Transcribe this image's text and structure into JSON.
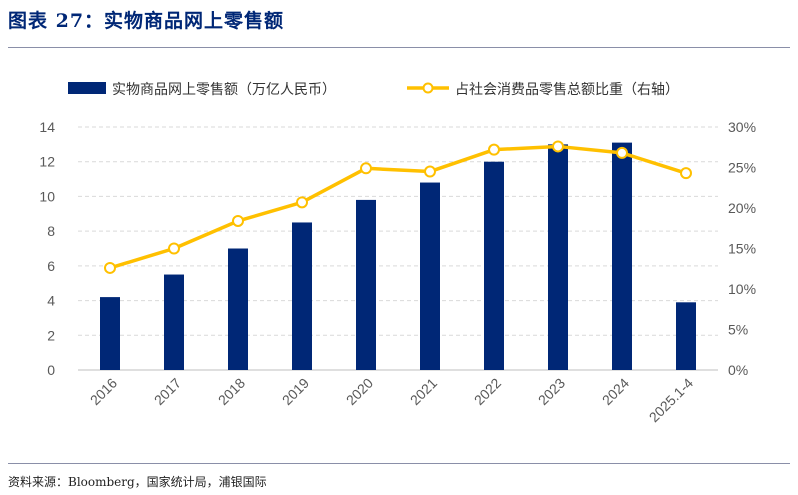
{
  "figure": {
    "title": "图表 27：实物商品网上零售额",
    "source": "资料来源：Bloomberg，国家统计局，浦银国际"
  },
  "colors": {
    "bar": "#002776",
    "line": "#FFC000",
    "grid": "#D9D9D9",
    "marker_fill": "#FFFFFF"
  },
  "chart_data": {
    "type": "bar+line",
    "title": "图表 27：实物商品网上零售额",
    "categories": [
      "2016",
      "2017",
      "2018",
      "2019",
      "2020",
      "2021",
      "2022",
      "2023",
      "2024",
      "2025.1-4"
    ],
    "series": [
      {
        "name": "实物商品网上零售额（万亿人民币）",
        "type": "bar",
        "axis": "left",
        "values": [
          4.2,
          5.5,
          7.0,
          8.5,
          9.8,
          10.8,
          12.0,
          13.0,
          13.1,
          3.9
        ]
      },
      {
        "name": "占社会消费品零售总额比重（右轴）",
        "type": "line",
        "axis": "right",
        "values": [
          12.6,
          15.0,
          18.4,
          20.7,
          24.9,
          24.5,
          27.2,
          27.6,
          26.8,
          24.3
        ]
      }
    ],
    "y_left": {
      "min": 0,
      "max": 14,
      "ticks": [
        "0",
        "2",
        "4",
        "6",
        "8",
        "10",
        "12",
        "14"
      ]
    },
    "y_right": {
      "min": 0,
      "max": 30,
      "ticks": [
        "0%",
        "5%",
        "10%",
        "15%",
        "20%",
        "25%",
        "30%"
      ]
    },
    "grid": true,
    "legend": "top"
  }
}
